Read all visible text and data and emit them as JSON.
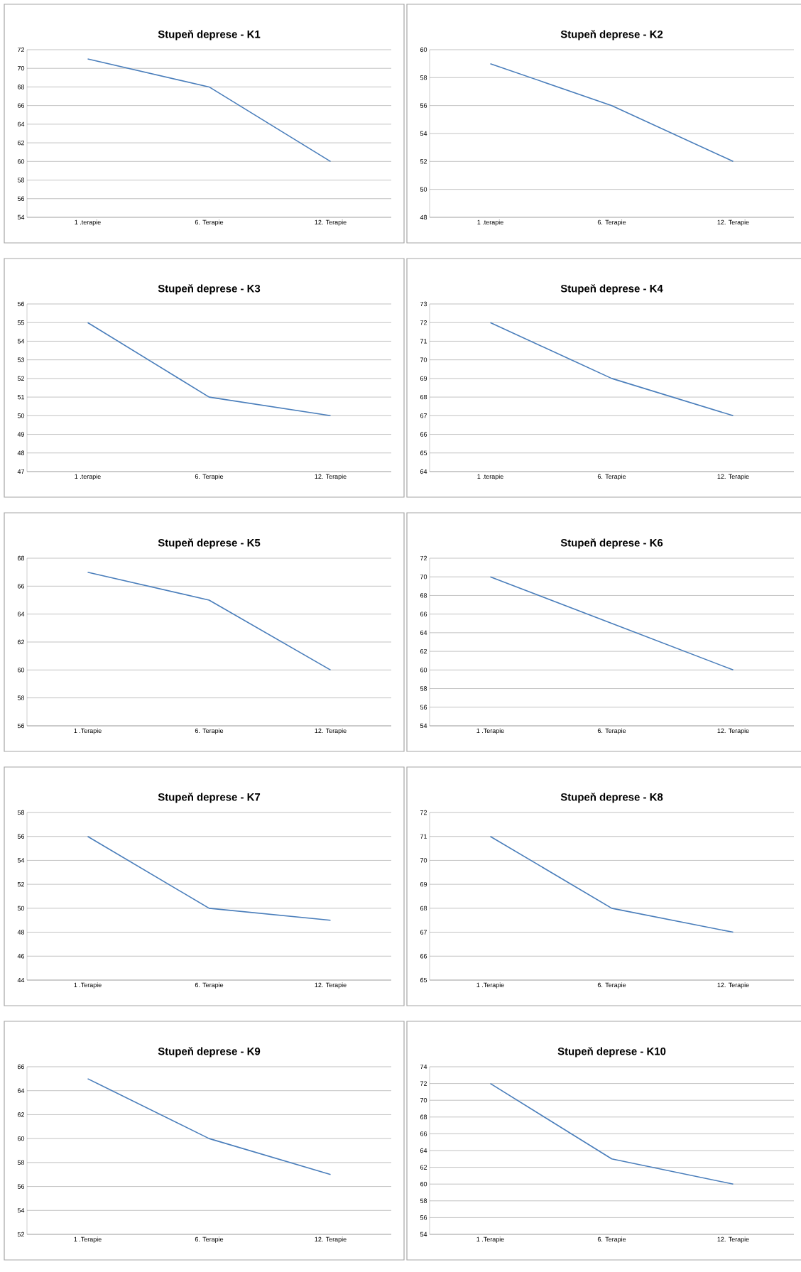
{
  "chart_data": [
    {
      "type": "line",
      "title": "Stupeň deprese - K1",
      "categories": [
        "1 .terapie",
        "6. Terapie",
        "12. Terapie"
      ],
      "values": [
        71,
        68,
        60
      ],
      "color": "#4a7ebb",
      "ylim": [
        54,
        72
      ],
      "yticks": [
        54,
        56,
        58,
        60,
        62,
        64,
        66,
        68,
        70,
        72
      ],
      "grid": "y"
    },
    {
      "type": "line",
      "title": "Stupeň deprese - K2",
      "categories": [
        "1 .terapie",
        "6. Terapie",
        "12. Terapie"
      ],
      "values": [
        59,
        56,
        52
      ],
      "color": "#4a7ebb",
      "ylim": [
        48,
        60
      ],
      "yticks": [
        48,
        50,
        52,
        54,
        56,
        58,
        60
      ],
      "grid": "y"
    },
    {
      "type": "line",
      "title": "Stupeň deprese - K3",
      "categories": [
        "1 .terapie",
        "6. Terapie",
        "12. Terapie"
      ],
      "values": [
        55,
        51,
        50
      ],
      "color": "#4a7ebb",
      "ylim": [
        47,
        56
      ],
      "yticks": [
        47,
        48,
        49,
        50,
        51,
        52,
        53,
        54,
        55,
        56
      ],
      "grid": "y"
    },
    {
      "type": "line",
      "title": "Stupeň deprese - K4",
      "categories": [
        "1 .terapie",
        "6. Terapie",
        "12. Terapie"
      ],
      "values": [
        72,
        69,
        67
      ],
      "color": "#4a7ebb",
      "ylim": [
        64,
        73
      ],
      "yticks": [
        64,
        65,
        66,
        67,
        68,
        69,
        70,
        71,
        72,
        73
      ],
      "grid": "y"
    },
    {
      "type": "line",
      "title": "Stupeň deprese - K5",
      "categories": [
        "1 .Terapie",
        "6. Terapie",
        "12. Terapie"
      ],
      "values": [
        67,
        65,
        60
      ],
      "color": "#4a7ebb",
      "ylim": [
        56,
        68
      ],
      "yticks": [
        56,
        58,
        60,
        62,
        64,
        66,
        68
      ],
      "grid": "y"
    },
    {
      "type": "line",
      "title": "Stupeň deprese - K6",
      "categories": [
        "1 .Terapie",
        "6. Terapie",
        "12. Terapie"
      ],
      "values": [
        70,
        65,
        60
      ],
      "color": "#4a7ebb",
      "ylim": [
        54,
        72
      ],
      "yticks": [
        54,
        56,
        58,
        60,
        62,
        64,
        66,
        68,
        70,
        72
      ],
      "grid": "y"
    },
    {
      "type": "line",
      "title": "Stupeň deprese - K7",
      "categories": [
        "1 .Terapie",
        "6. Terapie",
        "12. Terapie"
      ],
      "values": [
        56,
        50,
        49
      ],
      "color": "#4a7ebb",
      "ylim": [
        44,
        58
      ],
      "yticks": [
        44,
        46,
        48,
        50,
        52,
        54,
        56,
        58
      ],
      "grid": "y"
    },
    {
      "type": "line",
      "title": "Stupeň deprese - K8",
      "categories": [
        "1 .Terapie",
        "6. Terapie",
        "12. Terapie"
      ],
      "values": [
        71,
        68,
        67
      ],
      "color": "#4a7ebb",
      "ylim": [
        65,
        72
      ],
      "yticks": [
        65,
        66,
        67,
        68,
        69,
        70,
        71,
        72
      ],
      "grid": "y"
    },
    {
      "type": "line",
      "title": "Stupeň deprese - K9",
      "categories": [
        "1 .Terapie",
        "6. Terapie",
        "12. Terapie"
      ],
      "values": [
        65,
        60,
        57
      ],
      "color": "#4a7ebb",
      "ylim": [
        52,
        66
      ],
      "yticks": [
        52,
        54,
        56,
        58,
        60,
        62,
        64,
        66
      ],
      "grid": "y"
    },
    {
      "type": "line",
      "title": "Stupeň deprese - K10",
      "categories": [
        "1 .Terapie",
        "6. Terapie",
        "12. Terapie"
      ],
      "values": [
        72,
        63,
        60
      ],
      "color": "#4a7ebb",
      "ylim": [
        54,
        74
      ],
      "yticks": [
        54,
        56,
        58,
        60,
        62,
        64,
        66,
        68,
        70,
        72,
        74
      ],
      "grid": "y"
    }
  ]
}
